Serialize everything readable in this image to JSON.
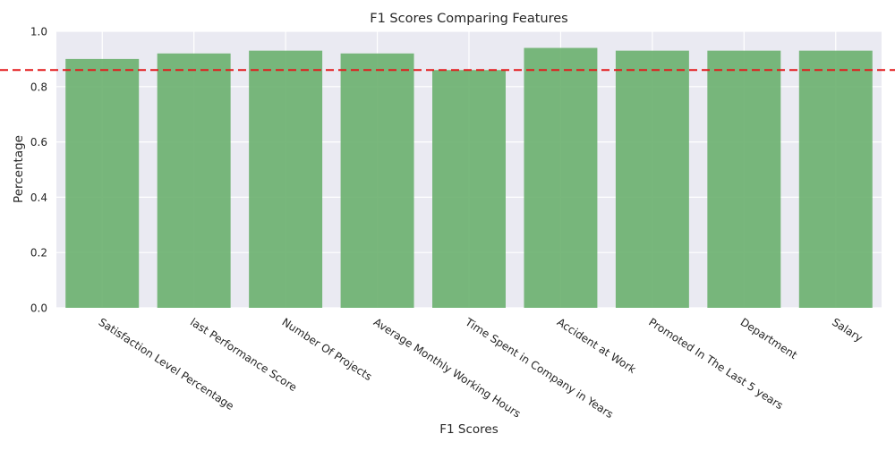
{
  "chart_data": {
    "type": "bar",
    "title": "F1 Scores Comparing Features",
    "xlabel": "F1 Scores",
    "ylabel": "Percentage",
    "categories": [
      "Satisfaction Level Percentage",
      "last Performance Score",
      "Number Of Projects",
      "Average Monthly Working Hours",
      "Time Spent in Company in Years",
      "Accident at Work",
      "Promoted In The Last 5 years",
      "Department",
      "Salary"
    ],
    "values": [
      0.9,
      0.92,
      0.93,
      0.92,
      0.86,
      0.94,
      0.93,
      0.93,
      0.93
    ],
    "ylim": [
      0,
      1.0
    ],
    "yticks": [
      "0.0",
      "0.2",
      "0.4",
      "0.6",
      "0.8",
      "1.0"
    ],
    "reference_line": {
      "value": 0.86,
      "style": "dashed",
      "color": "#e31a1c"
    },
    "bar_color": "#6ab06e",
    "background_color": "#eaeaf2",
    "grid": true
  }
}
